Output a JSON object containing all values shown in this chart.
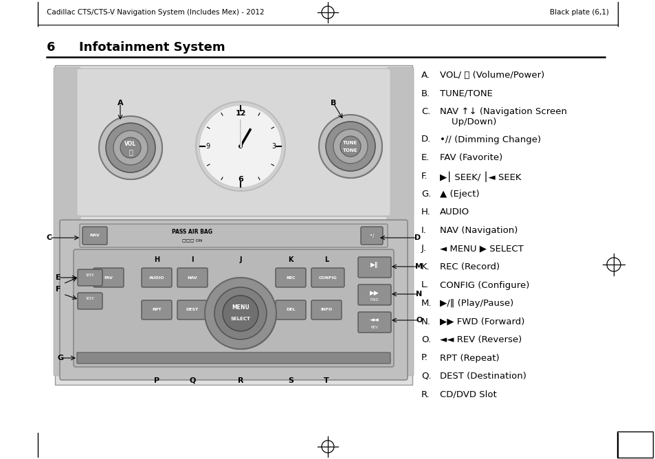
{
  "header_left": "Cadillac CTS/CTS-V Navigation System (Includes Mex) - 2012",
  "header_right": "Black plate (6,1)",
  "section_number": "6",
  "section_title": "Infotainment System",
  "items": [
    {
      "label": "A.",
      "text": "VOL/ ⏻ (Volume/Power)",
      "extra_lines": 0
    },
    {
      "label": "B.",
      "text": "TUNE/TONE",
      "extra_lines": 0
    },
    {
      "label": "C.",
      "text": "NAV ↑↓ (Navigation Screen\n    Up/Down)",
      "extra_lines": 1
    },
    {
      "label": "D.",
      "text": "•∕∕ (Dimming Change)",
      "extra_lines": 0
    },
    {
      "label": "E.",
      "text": "FAV (Favorite)",
      "extra_lines": 0
    },
    {
      "label": "F.",
      "text": "▶⎮ SEEK/ ⎮◄ SEEK",
      "extra_lines": 0
    },
    {
      "label": "G.",
      "text": "▲ (Eject)",
      "extra_lines": 0
    },
    {
      "label": "H.",
      "text": "AUDIO",
      "extra_lines": 0
    },
    {
      "label": "I.",
      "text": "NAV (Navigation)",
      "extra_lines": 0
    },
    {
      "label": "J.",
      "text": "◄ MENU ▶ SELECT",
      "extra_lines": 0
    },
    {
      "label": "K.",
      "text": "REC (Record)",
      "extra_lines": 0
    },
    {
      "label": "L.",
      "text": "CONFIG (Configure)",
      "extra_lines": 0
    },
    {
      "label": "M.",
      "text": "▶/‖ (Play/Pause)",
      "extra_lines": 0
    },
    {
      "label": "N.",
      "text": "▶▶ FWD (Forward)",
      "extra_lines": 0
    },
    {
      "label": "O.",
      "text": "◄◄ REV (Reverse)",
      "extra_lines": 0
    },
    {
      "label": "P.",
      "text": "RPT (Repeat)",
      "extra_lines": 0
    },
    {
      "label": "Q.",
      "text": "DEST (Destination)",
      "extra_lines": 0
    },
    {
      "label": "R.",
      "text": "CD/DVD Slot",
      "extra_lines": 0
    }
  ],
  "bg_color": "#ffffff",
  "text_color": "#000000",
  "header_fontsize": 7.5,
  "title_fontsize": 13,
  "item_fontsize": 9.5,
  "panel_bg": "#c8c8c8",
  "panel_upper_bg": "#bebebe",
  "knob_outer": "#b0b0b0",
  "knob_mid": "#888888",
  "knob_inner": "#a0a0a0",
  "btn_bg": "#909090",
  "strip_bg": "#b8b8b8",
  "ctrl_bg": "#b4b4b4"
}
